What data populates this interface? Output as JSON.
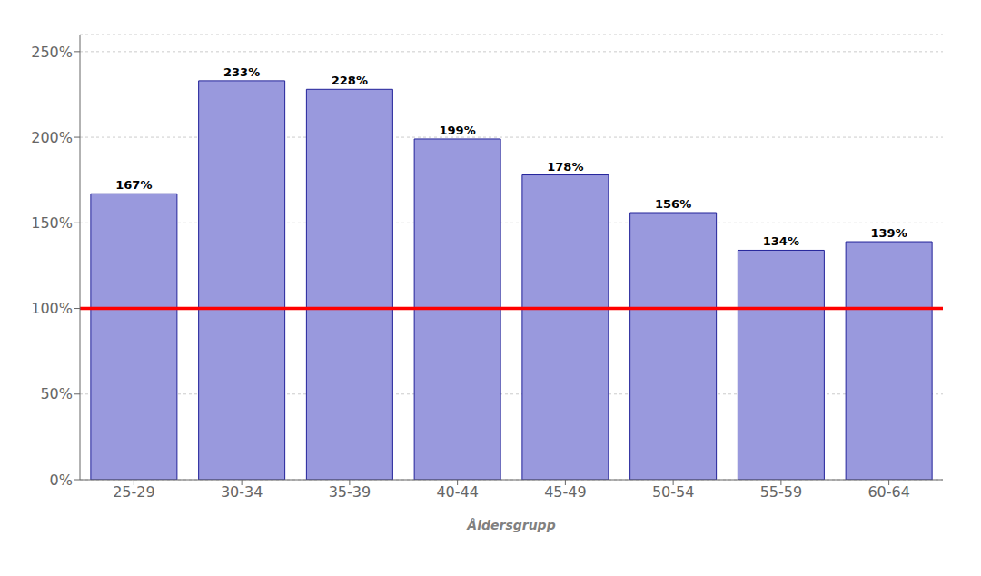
{
  "chart_data": {
    "type": "bar",
    "xlabel": "Åldersgrupp",
    "categories": [
      "25-29",
      "30-34",
      "35-39",
      "40-44",
      "45-49",
      "50-54",
      "55-59",
      "60-64"
    ],
    "values": [
      167,
      233,
      228,
      199,
      178,
      156,
      134,
      139
    ],
    "value_labels": [
      "167%",
      "233%",
      "228%",
      "199%",
      "178%",
      "156%",
      "134%",
      "139%"
    ],
    "data_labels": true,
    "color": "#9999dd",
    "ylim": [
      0,
      260
    ],
    "yticks": [
      {
        "value": 0,
        "label": "0%"
      },
      {
        "value": 50,
        "label": "50%"
      },
      {
        "value": 100,
        "label": "100%"
      },
      {
        "value": 150,
        "label": "150%"
      },
      {
        "value": 200,
        "label": "200%"
      },
      {
        "value": 250,
        "label": "250%"
      }
    ],
    "grid": true,
    "reference_line": {
      "y": 100,
      "color": "red"
    }
  }
}
